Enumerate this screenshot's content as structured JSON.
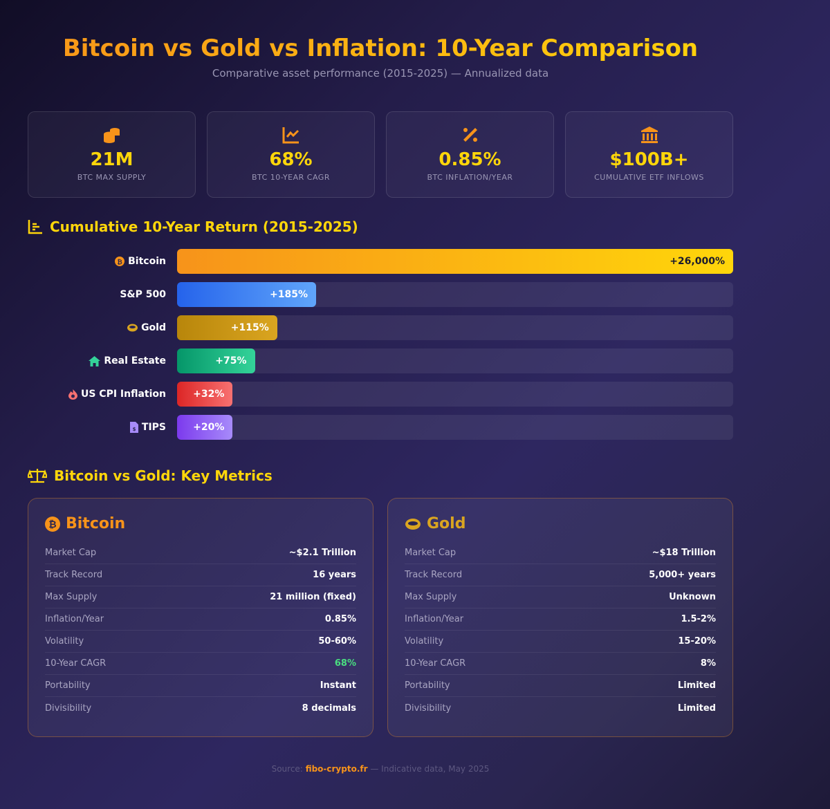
{
  "title": "Bitcoin vs Gold vs Inflation: 10-Year Comparison",
  "subtitle": "Comparative asset performance (2015-2025) — Annualized data",
  "stats": [
    {
      "icon": "coins-icon",
      "value": "21M",
      "label": "BTC MAX SUPPLY"
    },
    {
      "icon": "chart-line-icon",
      "value": "68%",
      "label": "BTC 10-YEAR CAGR"
    },
    {
      "icon": "percent-icon",
      "value": "0.85%",
      "label": "BTC INFLATION/YEAR"
    },
    {
      "icon": "bank-icon",
      "value": "$100B+",
      "label": "CUMULATIVE ETF INFLOWS"
    }
  ],
  "chart_data": {
    "type": "bar",
    "title": "Cumulative 10-Year Return (2015-2025)",
    "categories": [
      "Bitcoin",
      "S&P 500",
      "Gold",
      "Real Estate",
      "US CPI Inflation",
      "TIPS"
    ],
    "values": [
      26000,
      185,
      115,
      75,
      32,
      20
    ],
    "labels": [
      "+26,000%",
      "+185%",
      "+115%",
      "+75%",
      "+32%",
      "+20%"
    ],
    "fill_pct": [
      100,
      25,
      18,
      14,
      10,
      10
    ],
    "icons": [
      "bitcoin-icon",
      "",
      "gold-ring-icon",
      "house-icon",
      "fire-icon",
      "document-dollar-icon"
    ],
    "colors": [
      [
        "#f7931a",
        "#ffd60a"
      ],
      [
        "#2563eb",
        "#60a5fa"
      ],
      [
        "#b8860b",
        "#daa520"
      ],
      [
        "#059669",
        "#34d399"
      ],
      [
        "#dc2626",
        "#f87171"
      ],
      [
        "#7c3aed",
        "#a78bfa"
      ]
    ],
    "label_colors": [
      "#1a1a2e",
      "#fff",
      "#fff",
      "#fff",
      "#fff",
      "#fff"
    ]
  },
  "metrics_title": "Bitcoin vs Gold: Key Metrics",
  "cards": [
    {
      "name": "Bitcoin",
      "color": "#f7931a",
      "rows": [
        [
          "Market Cap",
          "~$2.1 Trillion"
        ],
        [
          "Track Record",
          "16 years"
        ],
        [
          "Max Supply",
          "21 million (fixed)"
        ],
        [
          "Inflation/Year",
          "0.85%"
        ],
        [
          "Volatility",
          "50-60%"
        ],
        [
          "10-Year CAGR",
          "68%"
        ],
        [
          "Portability",
          "Instant"
        ],
        [
          "Divisibility",
          "8 decimals"
        ]
      ]
    },
    {
      "name": "Gold",
      "color": "#daa520",
      "rows": [
        [
          "Market Cap",
          "~$18 Trillion"
        ],
        [
          "Track Record",
          "5,000+ years"
        ],
        [
          "Max Supply",
          "Unknown"
        ],
        [
          "Inflation/Year",
          "1.5-2%"
        ],
        [
          "Volatility",
          "15-20%"
        ],
        [
          "10-Year CAGR",
          "8%"
        ],
        [
          "Portability",
          "Limited"
        ],
        [
          "Divisibility",
          "Limited"
        ]
      ]
    }
  ],
  "footer": {
    "prefix": "Source:",
    "source": "fibo-crypto.fr",
    "suffix": "— Indicative data, May 2025"
  }
}
